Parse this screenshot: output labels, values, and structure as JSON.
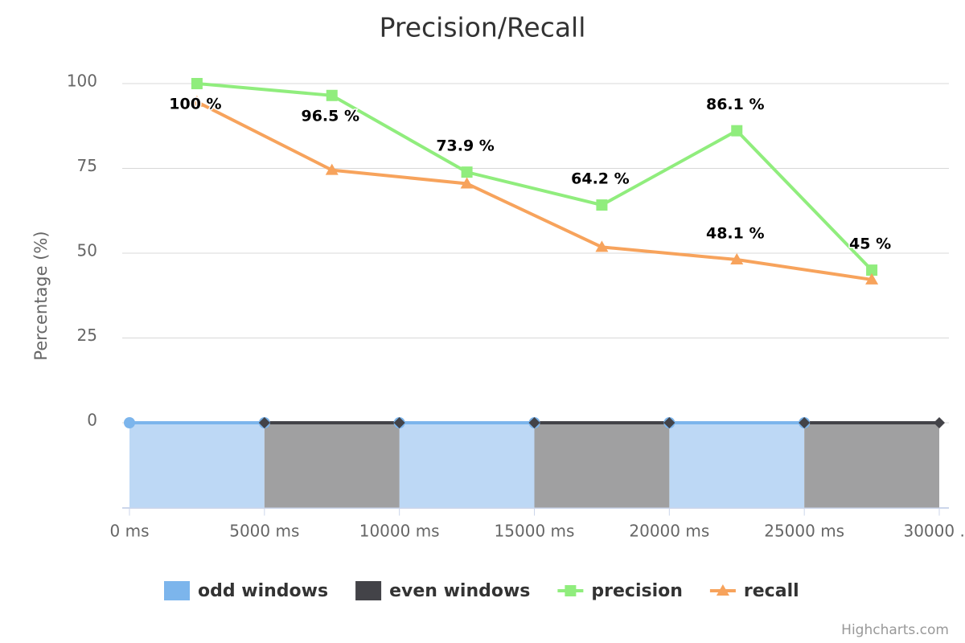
{
  "chart_data": {
    "type": "line",
    "title": "Precision/Recall",
    "y_axis_label": "Percentage (%)",
    "credits": "Highcharts.com",
    "xlim": [
      0,
      30000
    ],
    "xticks": [
      {
        "value": 0,
        "label": "0 ms"
      },
      {
        "value": 5000,
        "label": "5000 ms"
      },
      {
        "value": 10000,
        "label": "10000 ms"
      },
      {
        "value": 15000,
        "label": "15000 ms"
      },
      {
        "value": 20000,
        "label": "20000 ms"
      },
      {
        "value": 25000,
        "label": "25000 ms"
      },
      {
        "value": 30000,
        "label": "30000 ..."
      }
    ],
    "ylim": [
      -25,
      100
    ],
    "yticks": [
      0,
      25,
      50,
      75,
      100
    ],
    "grid": true,
    "legend": "bottom",
    "series": [
      {
        "name": "odd windows",
        "type": "area",
        "color": "#7cb5ec",
        "fill": "#bdd8f5",
        "marker": "circle",
        "x": [
          0,
          5000,
          5000,
          10000,
          15000,
          15000,
          20000,
          25000
        ],
        "values": [
          0,
          0,
          null,
          0,
          0,
          null,
          0,
          0
        ]
      },
      {
        "name": "even windows",
        "type": "area",
        "color": "#434348",
        "fill": "#a0a0a1",
        "marker": "diamond",
        "x": [
          5000,
          10000,
          10000,
          15000,
          20000,
          20000,
          25000,
          30000
        ],
        "values": [
          0,
          0,
          null,
          0,
          0,
          null,
          0,
          0
        ]
      },
      {
        "name": "precision",
        "type": "line",
        "color": "#90ed7d",
        "marker": "square",
        "x": [
          2500,
          7500,
          12500,
          17500,
          22500,
          27500
        ],
        "values": [
          100,
          96.5,
          73.9,
          64.2,
          86.1,
          45
        ],
        "value_labels": [
          "100 %",
          "96.5 %",
          "73.9 %",
          "64.2 %",
          "86.1 %",
          "45 %"
        ]
      },
      {
        "name": "recall",
        "type": "line",
        "color": "#f7a35c",
        "marker": "triangle",
        "x": [
          2500,
          7500,
          12500,
          17500,
          22500,
          27500
        ],
        "values": [
          94.6,
          74.5,
          70.5,
          51.8,
          48.1,
          42.2
        ],
        "value_labels": [
          null,
          null,
          null,
          null,
          "48.1 %",
          null
        ]
      }
    ]
  }
}
